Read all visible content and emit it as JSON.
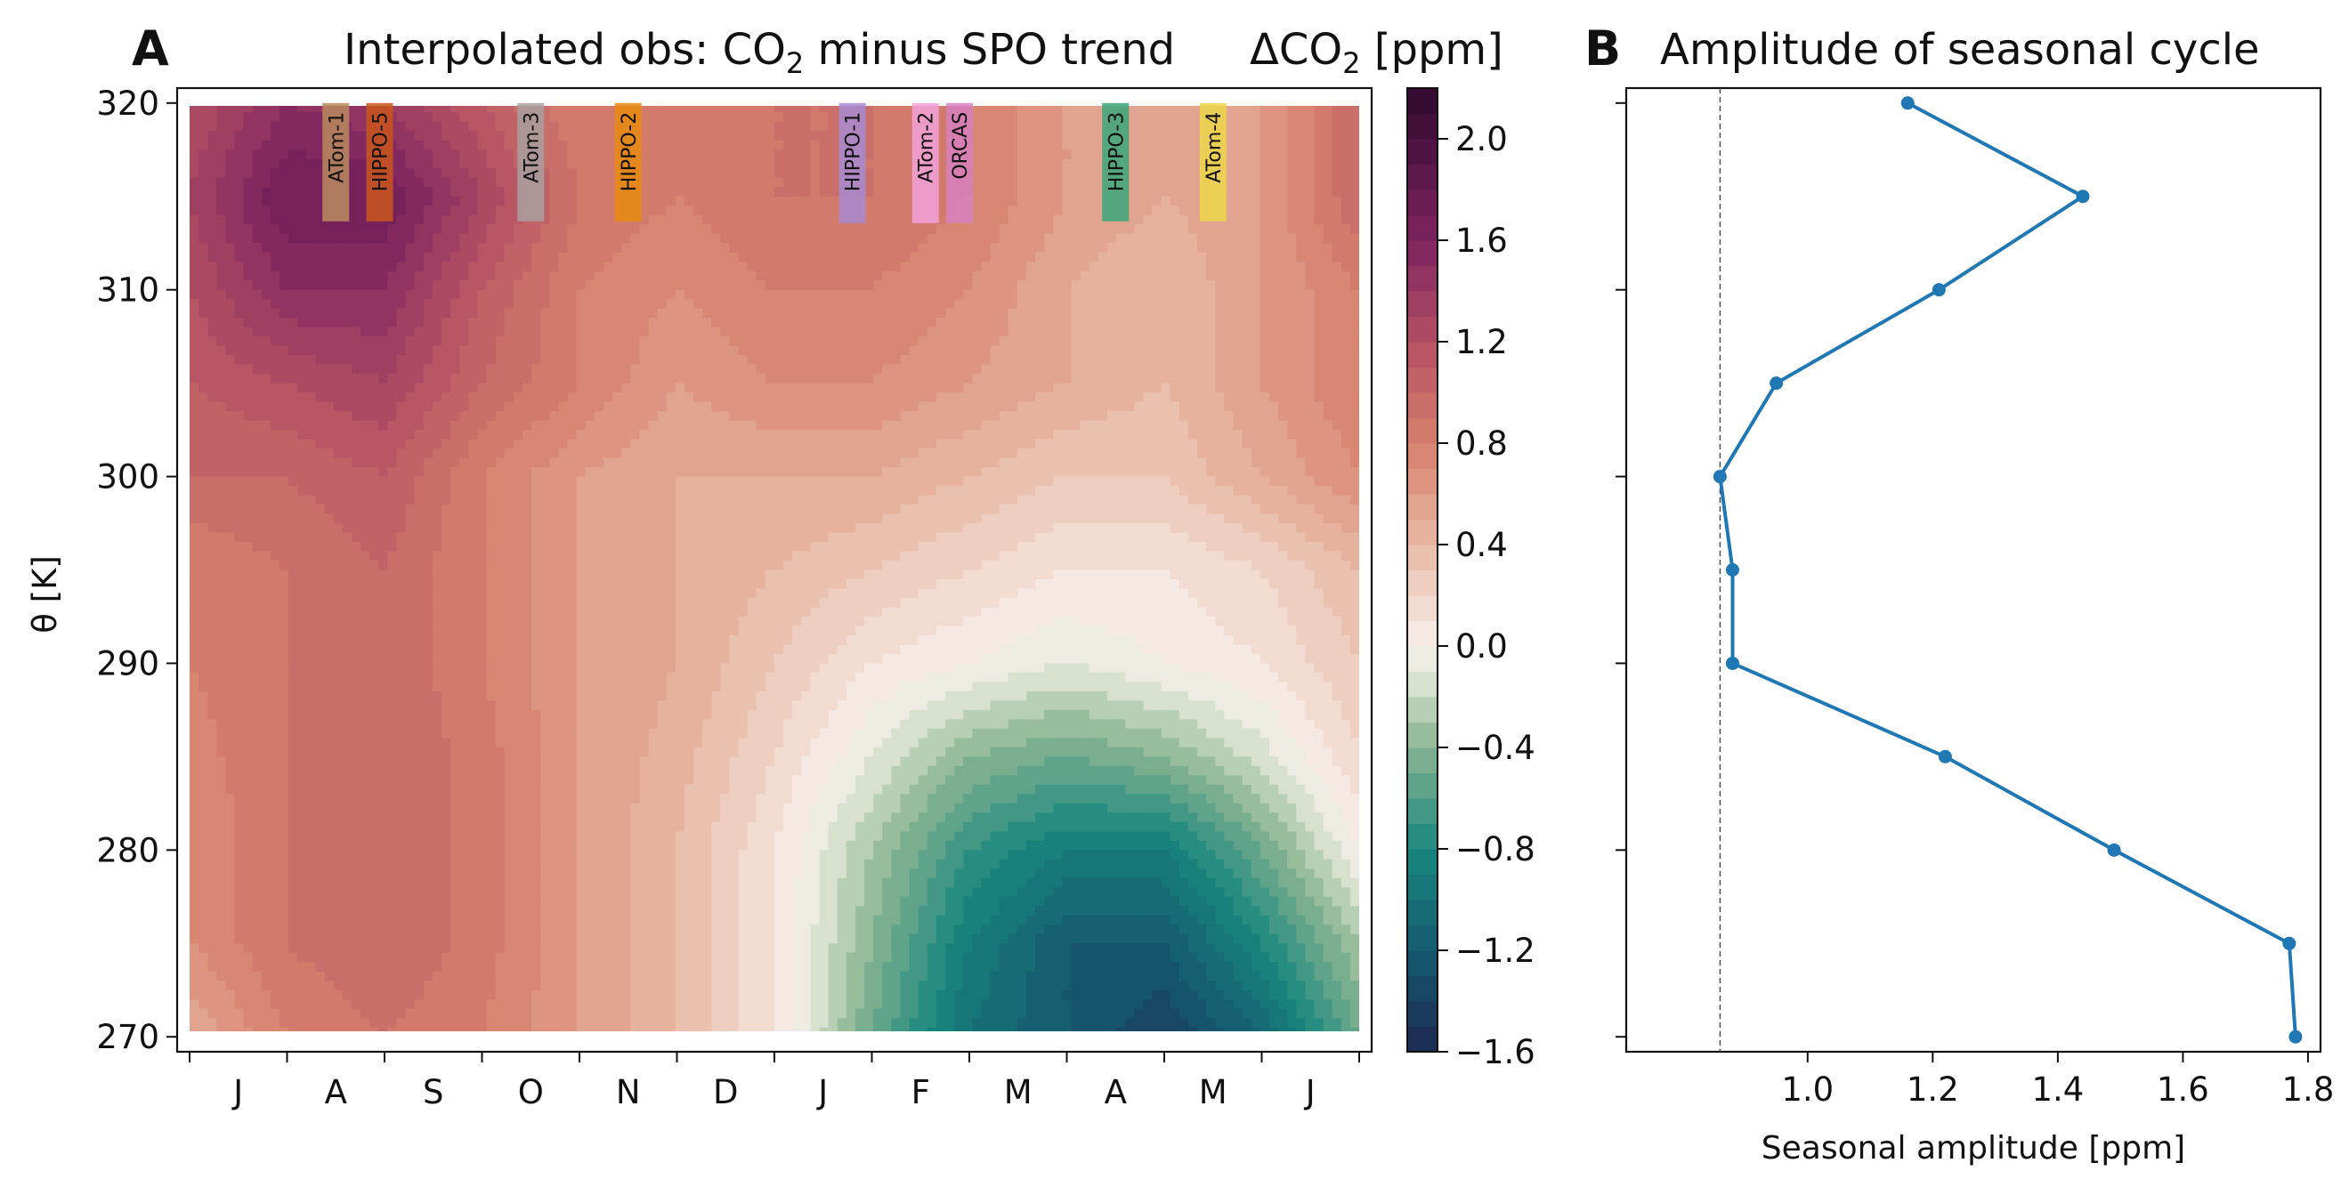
{
  "panels": {
    "a": {
      "letter": "A",
      "title_main": "Interpolated obs: CO",
      "title_sub": "2",
      "title_rest": " minus SPO trend",
      "cbar_title_pre": "ΔCO",
      "cbar_title_sub": "2",
      "cbar_title_post": " [ppm]"
    },
    "b": {
      "letter": "B",
      "title": "Amplitude of seasonal cycle"
    }
  },
  "chart_data": [
    {
      "type": "heatmap",
      "title": "Interpolated obs: CO2 minus SPO trend",
      "xlabel": "",
      "ylabel": "θ [K]",
      "x_tick_labels": [
        "J",
        "A",
        "S",
        "O",
        "N",
        "D",
        "J",
        "F",
        "M",
        "A",
        "M",
        "J"
      ],
      "y_ticks": [
        270,
        280,
        290,
        300,
        310,
        320
      ],
      "ylim": [
        269.2,
        320.8
      ],
      "x_months": [
        0,
        1,
        2,
        3,
        4,
        5,
        6,
        7,
        8,
        9,
        10,
        11,
        12
      ],
      "theta": [
        270,
        275,
        280,
        285,
        290,
        295,
        300,
        305,
        310,
        315,
        320
      ],
      "z_ppm": [
        [
          0.5,
          0.8,
          0.9,
          0.8,
          0.6,
          0.4,
          0.1,
          -0.5,
          -1.0,
          -1.2,
          -1.4,
          -1.1,
          -0.5
        ],
        [
          0.7,
          0.9,
          1.0,
          0.85,
          0.6,
          0.4,
          0.1,
          -0.4,
          -0.9,
          -1.2,
          -1.2,
          -0.8,
          -0.3
        ],
        [
          0.7,
          0.9,
          1.0,
          0.85,
          0.6,
          0.4,
          0.1,
          -0.3,
          -0.7,
          -0.9,
          -0.9,
          -0.5,
          0.0
        ],
        [
          0.75,
          0.9,
          1.0,
          0.85,
          0.6,
          0.45,
          0.2,
          -0.1,
          -0.4,
          -0.5,
          -0.4,
          -0.15,
          0.2
        ],
        [
          0.8,
          0.9,
          1.0,
          0.8,
          0.6,
          0.5,
          0.3,
          0.1,
          0.0,
          -0.1,
          0.0,
          0.1,
          0.3
        ],
        [
          0.8,
          0.9,
          1.0,
          0.8,
          0.6,
          0.5,
          0.4,
          0.3,
          0.2,
          0.1,
          0.1,
          0.2,
          0.4
        ],
        [
          1.0,
          1.0,
          1.1,
          0.8,
          0.6,
          0.5,
          0.5,
          0.5,
          0.4,
          0.3,
          0.3,
          0.5,
          0.7
        ],
        [
          1.1,
          1.2,
          1.3,
          1.0,
          0.8,
          0.6,
          0.7,
          0.7,
          0.6,
          0.5,
          0.4,
          0.6,
          0.8
        ],
        [
          1.2,
          1.5,
          1.5,
          1.1,
          0.8,
          0.7,
          0.8,
          0.8,
          0.7,
          0.5,
          0.4,
          0.6,
          0.8
        ],
        [
          1.3,
          1.7,
          1.7,
          1.3,
          0.9,
          0.8,
          0.9,
          0.9,
          0.8,
          0.6,
          0.5,
          0.6,
          1.0
        ],
        [
          1.2,
          1.5,
          1.4,
          1.1,
          0.8,
          0.8,
          0.9,
          0.9,
          0.8,
          0.6,
          0.5,
          0.6,
          1.0
        ]
      ],
      "colorbar": {
        "label": "ΔCO2 [ppm]",
        "range": [
          -1.6,
          2.2
        ],
        "ticks": [
          2.0,
          1.6,
          1.2,
          0.8,
          0.4,
          0.0,
          -0.4,
          -0.8,
          -1.2,
          -1.6
        ],
        "tick_labels": [
          "2.0",
          "1.6",
          "1.2",
          "0.8",
          "0.4",
          "0.0",
          "−0.4",
          "−0.8",
          "−1.2",
          "−1.6"
        ],
        "step": 0.1
      },
      "campaigns": [
        {
          "name": "ATom-1",
          "color": "#b88a5e",
          "month": 1.5
        },
        {
          "name": "HIPPO-5",
          "color": "#c9561c",
          "month": 1.95
        },
        {
          "name": "ATom-3",
          "color": "#a8a0a0",
          "month": 3.5
        },
        {
          "name": "HIPPO-2",
          "color": "#e8890e",
          "month": 4.5
        },
        {
          "name": "HIPPO-1",
          "color": "#a98bd1",
          "month": 6.8
        },
        {
          "name": "ATom-2",
          "color": "#f2a1d8",
          "month": 7.55
        },
        {
          "name": "ORCAS",
          "color": "#d880c0",
          "month": 7.9
        },
        {
          "name": "HIPPO-3",
          "color": "#3aa77a",
          "month": 9.5
        },
        {
          "name": "ATom-4",
          "color": "#ecd64a",
          "month": 10.5
        }
      ]
    },
    {
      "type": "line",
      "title": "Amplitude of seasonal cycle",
      "xlabel": "Seasonal amplitude [ppm]",
      "ylabel": "",
      "xlim": [
        0.71,
        1.82
      ],
      "ylim": [
        269.2,
        320.8
      ],
      "x_ticks": [
        1.0,
        1.2,
        1.4,
        1.6,
        1.8
      ],
      "x_tick_labels": [
        "1.0",
        "1.2",
        "1.4",
        "1.6",
        "1.8"
      ],
      "series": [
        {
          "color": "#1f77b4",
          "x": [
            1.78,
            1.77,
            1.49,
            1.22,
            0.88,
            0.88,
            0.86,
            0.95,
            1.21,
            1.44,
            1.16
          ],
          "y": [
            270,
            275,
            280,
            285,
            290,
            295,
            300,
            305,
            310,
            315,
            320
          ]
        }
      ],
      "reference_x": 0.86
    }
  ]
}
